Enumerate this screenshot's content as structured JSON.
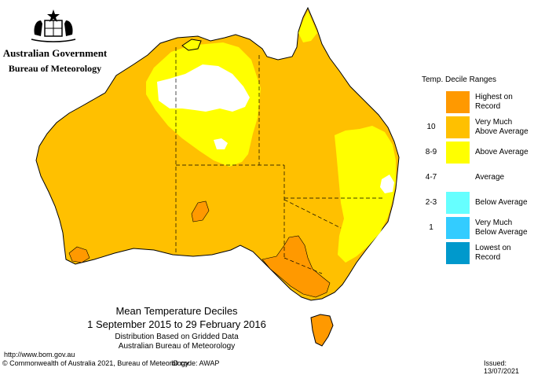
{
  "header": {
    "government": "Australian Government",
    "bureau": "Bureau of Meteorology"
  },
  "legend": {
    "title": "Temp. Decile Ranges",
    "items": [
      {
        "code": "",
        "label_lines": [
          "Highest on",
          "Record"
        ],
        "color": "#ff9900"
      },
      {
        "code": "10",
        "label_lines": [
          "Very Much",
          "Above Average"
        ],
        "color": "#ffc000"
      },
      {
        "code": "8-9",
        "label_lines": [
          "Above Average"
        ],
        "color": "#ffff00"
      },
      {
        "code": "4-7",
        "label_lines": [
          "Average"
        ],
        "color": "#ffffff"
      },
      {
        "code": "2-3",
        "label_lines": [
          "Below Average"
        ],
        "color": "#66ffff"
      },
      {
        "code": "1",
        "label_lines": [
          "Very Much",
          "Below Average"
        ],
        "color": "#33ccff"
      },
      {
        "code": "",
        "label_lines": [
          "Lowest on",
          "Record"
        ],
        "color": "#0099cc"
      }
    ]
  },
  "caption": {
    "title": "Mean Temperature Deciles",
    "period": "1 September 2015 to 29 February 2016",
    "line3": "Distribution Based on Gridded Data",
    "line4": "Australian Bureau of Meteorology"
  },
  "footer": {
    "url": "http://www.bom.gov.au",
    "copyright": "© Commonwealth of Australia 2021, Bureau of Meteorology",
    "id_code": "ID code: AWAP",
    "issued": "Issued: 13/07/2021"
  },
  "map_colors": {
    "very_much_above": "#ffc000",
    "above": "#ffff00",
    "average": "#ffffff",
    "highest": "#ff9900",
    "outline": "#000000"
  }
}
